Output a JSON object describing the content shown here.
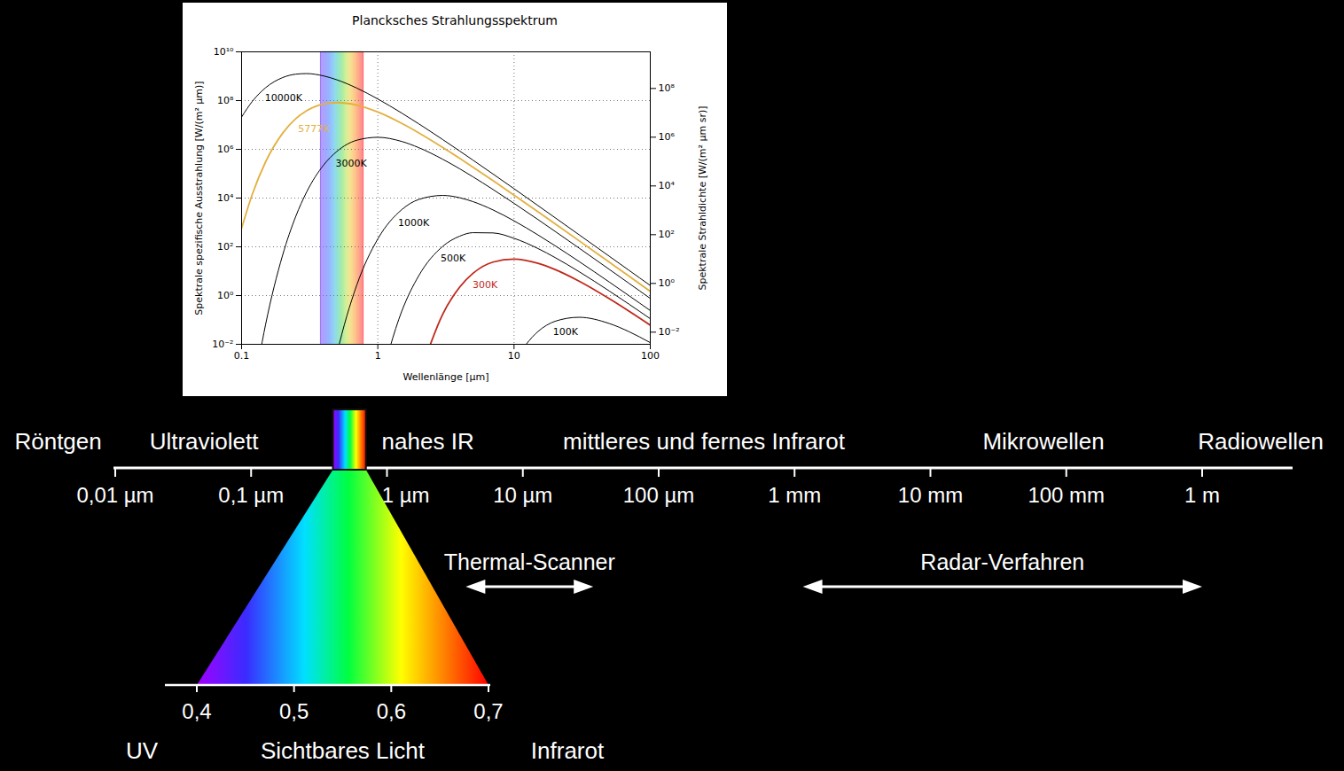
{
  "chart_data": {
    "type": "line",
    "title": "Plancksches Strahlungsspektrum",
    "x_label": "Wellenlänge [µm]",
    "y_label": "Spektrale spezifische Ausstrahlung [W/(m² µm)]",
    "y2_label": "Spektrale Strahldichte [W/(m² µm sr)]",
    "log": true,
    "grid": true,
    "xlim": [
      0.1,
      100
    ],
    "xticks": [
      0.1,
      1,
      10,
      100
    ],
    "ylim": [
      0.01,
      10000000000
    ],
    "yticks": [
      {
        "value": 0.01,
        "label": "10⁻²"
      },
      {
        "value": 1,
        "label": "10⁰"
      },
      {
        "value": 100,
        "label": "10²"
      },
      {
        "value": 10000,
        "label": "10⁴"
      },
      {
        "value": 1000000,
        "label": "10⁶"
      },
      {
        "value": 100000000,
        "label": "10⁸"
      },
      {
        "value": 10000000000,
        "label": "10¹⁰"
      }
    ],
    "y2lim": [
      0.00318,
      3180000000
    ],
    "y2ticks": [
      {
        "value": 0.01,
        "label": "10⁻²"
      },
      {
        "value": 1,
        "label": "10⁰"
      },
      {
        "value": 100,
        "label": "10²"
      },
      {
        "value": 10000,
        "label": "10⁴"
      },
      {
        "value": 1000000,
        "label": "10⁶"
      },
      {
        "value": 100000000,
        "label": "10⁸"
      }
    ],
    "visible_band": [
      0.38,
      0.78
    ],
    "x": [
      0.1,
      0.12,
      0.15,
      0.2,
      0.25,
      0.3,
      0.4,
      0.5,
      0.7,
      1,
      1.5,
      2,
      3,
      4,
      5,
      7,
      10,
      15,
      20,
      30,
      50,
      70,
      100
    ],
    "series": [
      {
        "name": "10000K",
        "color": "#000000",
        "label_position": [
          0.148,
          130000000
        ],
        "values": [
          21100000,
          93400000,
          336000000,
          878000000,
          1213000000,
          1283000000,
          1029000000,
          713000000,
          327000000,
          116300000,
          30600000,
          11100000,
          2500000,
          844000,
          359000,
          97500,
          24200,
          4893,
          1567,
          313,
          41.0,
          10.72,
          2.58
        ]
      },
      {
        "name": "5777K",
        "color": "#e3b03f",
        "label_position": [
          0.26,
          7000000
        ],
        "values": [
          571,
          14570,
          303000,
          4566000,
          18070000,
          38200000,
          72400000,
          82800000,
          65300000,
          33800000,
          11560000,
          4730000,
          1190000,
          423000,
          185400,
          52100,
          13230,
          2727,
          881,
          177.9,
          23.4,
          6.15,
          1.484
        ]
      },
      {
        "name": "3000K",
        "color": "#000000",
        "label_position": [
          0.49,
          260000
        ],
        "values": [
          null,
          6.6e-05,
          0.0643,
          45.0,
          1785,
          17560,
          227000,
          817000,
          2358000,
          3118000,
          2100000,
          1169000,
          390000,
          157700,
          74300,
          22620,
          6081,
          1308,
          431,
          88.8,
          11.89,
          3.14,
          0.762
        ]
      },
      {
        "name": "1000K",
        "color": "#000000",
        "label_position": [
          1.41,
          1000
        ],
        "values": [
          null,
          null,
          null,
          null,
          null,
          null,
          8.7e-06,
          0.00381,
          2.64,
          211,
          3361,
          8789,
          12830,
          10290,
          7134,
          3269,
          1163,
          306,
          111,
          25.0,
          3.59,
          0.975,
          0.242
        ]
      },
      {
        "name": "500K",
        "color": "#000000",
        "label_position": [
          2.89,
          34
        ],
        "values": [
          null,
          null,
          null,
          null,
          null,
          null,
          null,
          null,
          null,
          0.000119,
          0.2296,
          6.6,
          105.1,
          274.7,
          380,
          371,
          223,
          84.8,
          36.3,
          9.57,
          1.539,
          0.438,
          0.112
        ]
      },
      {
        "name": "300K",
        "color": "#c0281c",
        "label_position": [
          4.95,
          2.7
        ],
        "values": [
          null,
          null,
          null,
          null,
          null,
          null,
          null,
          null,
          null,
          null,
          null,
          0.00045,
          0.1756,
          2.27,
          8.17,
          23.6,
          31.2,
          21.0,
          11.69,
          3.9,
          0.743,
          0.2262,
          0.0608
        ]
      },
      {
        "name": "100K",
        "color": "#000000",
        "label_position": [
          19.3,
          0.032
        ],
        "values": [
          null,
          null,
          null,
          null,
          null,
          null,
          null,
          null,
          null,
          null,
          null,
          null,
          null,
          null,
          null,
          null,
          0.00211,
          0.0336,
          0.0879,
          0.1283,
          0.0713,
          0.0327,
          0.01164
        ]
      }
    ]
  },
  "spectrum_diagram": {
    "scale_um": [
      0.01,
      1000000
    ],
    "ticks": [
      {
        "value": 0.01,
        "label": "0,01 µm"
      },
      {
        "value": 0.1,
        "label": "0,1 µm"
      },
      {
        "value": 1,
        "label": "1 µm"
      },
      {
        "value": 10,
        "label": "10 µm"
      },
      {
        "value": 100,
        "label": "100 µm"
      },
      {
        "value": 1000,
        "label": "1 mm"
      },
      {
        "value": 10000,
        "label": "10 mm"
      },
      {
        "value": 100000,
        "label": "100 mm"
      },
      {
        "value": 1000000,
        "label": "1 m"
      }
    ],
    "bands": [
      {
        "label": "Röntgen",
        "at_um": 0.0038
      },
      {
        "label": "Ultraviolett",
        "at_um": 0.045
      },
      {
        "label": "nahes IR",
        "at_um": 2
      },
      {
        "label": "mittleres und fernes Infrarot",
        "at_um": 215
      },
      {
        "label": "Mikrowellen",
        "at_um": 68000
      },
      {
        "label": "Radiowellen",
        "at_um": 2700000
      }
    ],
    "methods": [
      {
        "label": "Thermal-Scanner",
        "from_um": 3.8,
        "to_um": 33
      },
      {
        "label": "Radar-Verfahren",
        "from_um": 1150,
        "to_um": 1000000
      }
    ],
    "visible": {
      "range_um": [
        0.4,
        0.7
      ],
      "ticks": [
        {
          "value": 0.4,
          "label": "0,4"
        },
        {
          "value": 0.5,
          "label": "0,5"
        },
        {
          "value": 0.6,
          "label": "0,6"
        },
        {
          "value": 0.7,
          "label": "0,7"
        }
      ],
      "left_label": "UV",
      "label": "Sichtbares Licht",
      "right_label": "Infrarot"
    }
  }
}
